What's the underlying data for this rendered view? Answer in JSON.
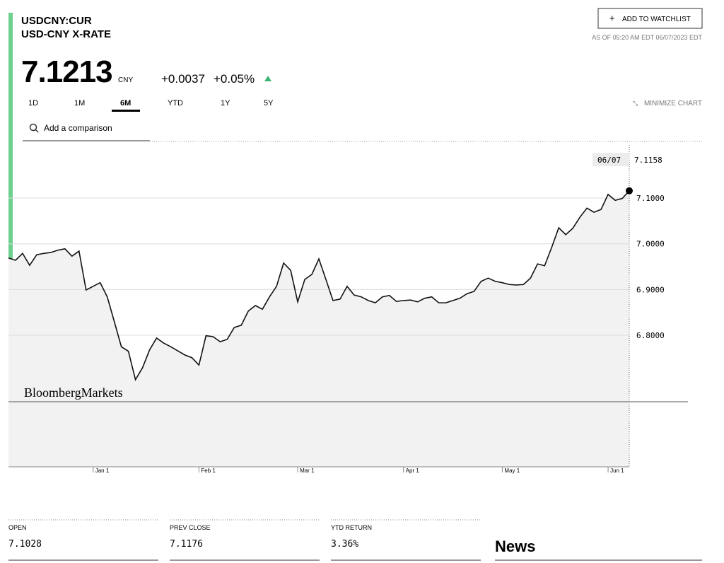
{
  "header": {
    "ticker": "USDCNY:CUR",
    "name": "USD-CNY X-RATE",
    "price": "7.1213",
    "currency": "CNY",
    "change": "+0.0037",
    "change_pct": "+0.05%",
    "watchlist_button": "ADD TO WATCHLIST",
    "as_of": "AS OF 05:20 AM EDT 06/07/2023 EDT"
  },
  "ranges": [
    "1D",
    "1M",
    "6M",
    "YTD",
    "1Y",
    "5Y"
  ],
  "minimize": "MINIMIZE CHART",
  "comparison_placeholder": "Add a comparison",
  "chart_data": {
    "type": "line",
    "color": "#111111",
    "fill": "#f2f2f2",
    "watermark": "BloombergMarkets",
    "tooltip_date": "06/07",
    "values": [
      6.969,
      6.964,
      6.979,
      6.953,
      6.976,
      6.979,
      6.981,
      6.986,
      6.989,
      6.973,
      6.984,
      6.899,
      6.907,
      6.915,
      6.884,
      6.83,
      6.775,
      6.765,
      6.703,
      6.729,
      6.768,
      6.794,
      6.783,
      6.775,
      6.766,
      6.757,
      6.751,
      6.735,
      6.799,
      6.797,
      6.786,
      6.791,
      6.817,
      6.822,
      6.853,
      6.865,
      6.857,
      6.884,
      6.907,
      6.958,
      6.942,
      6.873,
      6.922,
      6.933,
      6.967,
      6.922,
      6.876,
      6.879,
      6.907,
      6.888,
      6.884,
      6.876,
      6.871,
      6.884,
      6.887,
      6.874,
      6.876,
      6.877,
      6.873,
      6.881,
      6.884,
      6.871,
      6.871,
      6.876,
      6.881,
      6.891,
      6.896,
      6.918,
      6.925,
      6.918,
      6.915,
      6.911,
      6.91,
      6.911,
      6.925,
      6.956,
      6.952,
      6.992,
      7.035,
      7.02,
      7.034,
      7.058,
      7.078,
      7.069,
      7.075,
      7.108,
      7.095,
      7.099,
      7.1158
    ],
    "xlim": [
      0,
      88
    ],
    "xticks": [
      {
        "value": 12,
        "label": "Jan 1"
      },
      {
        "value": 27,
        "label": "Feb 1"
      },
      {
        "value": 41,
        "label": "Mar 1"
      },
      {
        "value": 56,
        "label": "Apr 1"
      },
      {
        "value": 70,
        "label": "May 1"
      },
      {
        "value": 85,
        "label": "Jun 1"
      }
    ],
    "ylim": [
      6.5125,
      7.2237
    ],
    "yticks": [
      {
        "value": 6.8,
        "label": "6.8000"
      },
      {
        "value": 6.9,
        "label": "6.9000"
      },
      {
        "value": 7.0,
        "label": "7.0000"
      },
      {
        "value": 7.1,
        "label": "7.1000"
      }
    ],
    "grid": true
  },
  "stats": [
    {
      "label": "OPEN",
      "value": "7.1028"
    },
    {
      "label": "PREV CLOSE",
      "value": "7.1176"
    },
    {
      "label": "YTD RETURN",
      "value": "3.36%"
    }
  ],
  "news_title": "News"
}
